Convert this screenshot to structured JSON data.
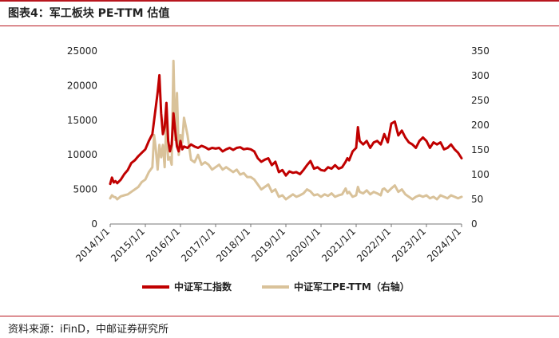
{
  "title": "图表4：军工板块 PE-TTM 估值",
  "source": "资料来源：iFinD，中邮证券研究所",
  "colors": {
    "accent": "#b8161e",
    "series_index": "#c00000",
    "series_pe": "#d9c29a"
  },
  "chart_data": {
    "type": "line",
    "title": "",
    "xlabel": "",
    "ylabel": "",
    "x_ticks": [
      "2014/1/1",
      "2015/1/1",
      "2016/1/1",
      "2017/1/1",
      "2018/1/1",
      "2019/1/1",
      "2020/1/1",
      "2021/1/1",
      "2022/1/1",
      "2023/1/1",
      "2024/1/1"
    ],
    "x_range": [
      2014.0,
      2024.0
    ],
    "y_left": {
      "range": [
        0,
        25000
      ],
      "ticks": [
        "0",
        "5000",
        "10000",
        "15000",
        "20000",
        "25000"
      ]
    },
    "y_right": {
      "range": [
        0,
        350
      ],
      "ticks": [
        "0",
        "50",
        "100",
        "150",
        "200",
        "250",
        "300",
        "350"
      ]
    },
    "grid": false,
    "legend_position": "bottom",
    "series": [
      {
        "name": "中证军工指数",
        "axis": "left",
        "color": "#c00000",
        "x": [
          2014.0,
          2014.05,
          2014.1,
          2014.15,
          2014.2,
          2014.3,
          2014.4,
          2014.5,
          2014.6,
          2014.7,
          2014.8,
          2014.9,
          2015.0,
          2015.1,
          2015.2,
          2015.25,
          2015.3,
          2015.35,
          2015.4,
          2015.45,
          2015.5,
          2015.55,
          2015.6,
          2015.65,
          2015.7,
          2015.75,
          2015.8,
          2015.85,
          2015.9,
          2015.95,
          2016.0,
          2016.05,
          2016.1,
          2016.2,
          2016.3,
          2016.4,
          2016.5,
          2016.6,
          2016.7,
          2016.8,
          2016.9,
          2017.0,
          2017.1,
          2017.2,
          2017.3,
          2017.4,
          2017.5,
          2017.6,
          2017.7,
          2017.8,
          2017.9,
          2018.0,
          2018.1,
          2018.2,
          2018.3,
          2018.4,
          2018.5,
          2018.6,
          2018.7,
          2018.8,
          2018.9,
          2019.0,
          2019.1,
          2019.2,
          2019.3,
          2019.4,
          2019.5,
          2019.6,
          2019.7,
          2019.8,
          2019.9,
          2020.0,
          2020.1,
          2020.2,
          2020.3,
          2020.4,
          2020.5,
          2020.6,
          2020.7,
          2020.75,
          2020.8,
          2020.9,
          2021.0,
          2021.05,
          2021.1,
          2021.2,
          2021.3,
          2021.4,
          2021.5,
          2021.6,
          2021.7,
          2021.75,
          2021.8,
          2021.9,
          2022.0,
          2022.1,
          2022.2,
          2022.3,
          2022.4,
          2022.5,
          2022.6,
          2022.7,
          2022.8,
          2022.9,
          2023.0,
          2023.1,
          2023.2,
          2023.3,
          2023.4,
          2023.5,
          2023.6,
          2023.7,
          2023.8,
          2023.9,
          2024.0
        ],
        "values": [
          5800,
          6700,
          6000,
          6200,
          5900,
          6400,
          7200,
          7800,
          8800,
          9200,
          9800,
          10300,
          10800,
          12000,
          13000,
          15000,
          17000,
          19000,
          21500,
          16000,
          13000,
          14000,
          17500,
          12000,
          10500,
          11500,
          16000,
          13500,
          11200,
          10500,
          12000,
          10800,
          11200,
          11000,
          11500,
          11200,
          11000,
          11300,
          11100,
          10800,
          11000,
          10900,
          11000,
          10500,
          10800,
          11000,
          10700,
          11000,
          11100,
          10800,
          10900,
          10800,
          10500,
          9500,
          9000,
          9300,
          9500,
          8500,
          9000,
          7500,
          7800,
          7000,
          7600,
          7400,
          7500,
          7200,
          7800,
          8500,
          9100,
          8000,
          8200,
          7800,
          7700,
          8200,
          8000,
          8500,
          8000,
          8200,
          9000,
          9500,
          9200,
          10500,
          11000,
          14000,
          12000,
          11500,
          12000,
          11000,
          11800,
          12000,
          11500,
          12200,
          13000,
          11800,
          14500,
          14800,
          12800,
          13500,
          12500,
          11800,
          11500,
          11000,
          12000,
          12500,
          12000,
          11000,
          11800,
          11500,
          11800,
          10800,
          11000,
          11500,
          10800,
          10300,
          9500
        ]
      },
      {
        "name": "中证军工PE-TTM（右轴）",
        "axis": "right",
        "color": "#d9c29a",
        "x": [
          2014.0,
          2014.05,
          2014.1,
          2014.15,
          2014.2,
          2014.3,
          2014.4,
          2014.5,
          2014.6,
          2014.7,
          2014.8,
          2014.9,
          2015.0,
          2015.1,
          2015.2,
          2015.25,
          2015.3,
          2015.35,
          2015.4,
          2015.45,
          2015.5,
          2015.55,
          2015.6,
          2015.65,
          2015.7,
          2015.75,
          2015.8,
          2015.85,
          2015.9,
          2015.95,
          2016.0,
          2016.05,
          2016.1,
          2016.2,
          2016.3,
          2016.4,
          2016.5,
          2016.6,
          2016.7,
          2016.8,
          2016.9,
          2017.0,
          2017.1,
          2017.2,
          2017.3,
          2017.4,
          2017.5,
          2017.6,
          2017.7,
          2017.8,
          2017.9,
          2018.0,
          2018.1,
          2018.2,
          2018.3,
          2018.4,
          2018.5,
          2018.6,
          2018.7,
          2018.8,
          2018.9,
          2019.0,
          2019.1,
          2019.2,
          2019.3,
          2019.4,
          2019.5,
          2019.6,
          2019.7,
          2019.8,
          2019.9,
          2020.0,
          2020.1,
          2020.2,
          2020.3,
          2020.4,
          2020.5,
          2020.6,
          2020.7,
          2020.75,
          2020.8,
          2020.9,
          2021.0,
          2021.05,
          2021.1,
          2021.2,
          2021.3,
          2021.4,
          2021.5,
          2021.6,
          2021.7,
          2021.75,
          2021.8,
          2021.9,
          2022.0,
          2022.1,
          2022.2,
          2022.3,
          2022.4,
          2022.5,
          2022.6,
          2022.7,
          2022.8,
          2022.9,
          2023.0,
          2023.1,
          2023.2,
          2023.3,
          2023.4,
          2023.5,
          2023.6,
          2023.7,
          2023.8,
          2023.9,
          2024.0
        ],
        "values": [
          52,
          58,
          55,
          54,
          50,
          56,
          58,
          60,
          65,
          70,
          75,
          85,
          90,
          105,
          115,
          180,
          150,
          110,
          160,
          135,
          160,
          115,
          210,
          130,
          135,
          120,
          330,
          170,
          265,
          140,
          180,
          165,
          215,
          180,
          130,
          125,
          140,
          120,
          125,
          120,
          110,
          115,
          120,
          110,
          115,
          110,
          105,
          110,
          100,
          103,
          95,
          95,
          90,
          80,
          70,
          75,
          80,
          65,
          70,
          55,
          58,
          50,
          55,
          60,
          55,
          58,
          62,
          70,
          66,
          58,
          60,
          55,
          60,
          57,
          62,
          55,
          58,
          60,
          72,
          62,
          65,
          55,
          58,
          75,
          65,
          62,
          68,
          60,
          65,
          62,
          58,
          70,
          72,
          65,
          72,
          78,
          65,
          70,
          60,
          55,
          50,
          55,
          58,
          55,
          58,
          52,
          55,
          50,
          58,
          55,
          52,
          58,
          55,
          52,
          55
        ]
      }
    ]
  }
}
